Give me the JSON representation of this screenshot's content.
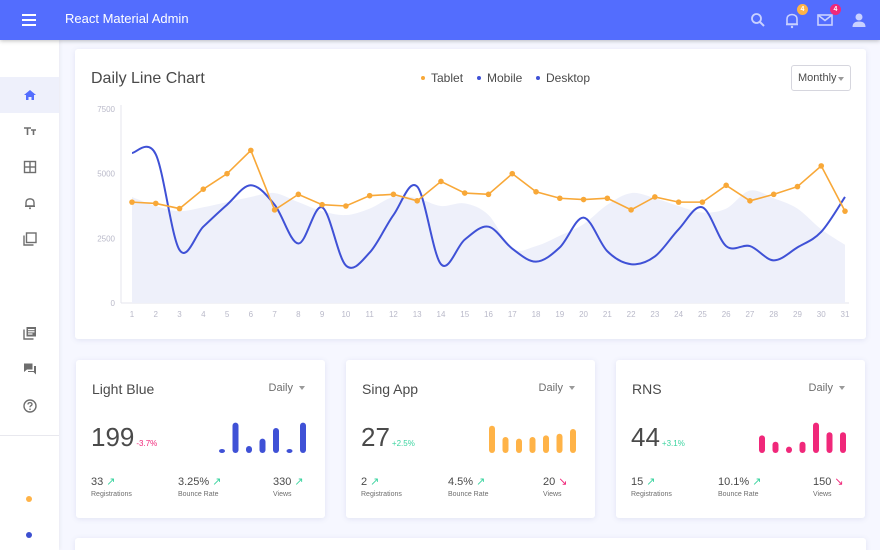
{
  "app": {
    "title": "React Material Admin"
  },
  "header": {
    "notifications_badge": "4",
    "messages_badge": "4",
    "icons": [
      "search-icon",
      "bell-icon",
      "mail-icon",
      "account-icon"
    ]
  },
  "sidebar": {
    "items": [
      {
        "icon": "home-icon",
        "active": true
      },
      {
        "icon": "typography-icon",
        "active": false
      },
      {
        "icon": "table-icon",
        "active": false
      },
      {
        "icon": "notifications-icon",
        "active": false
      },
      {
        "icon": "ui-elements-icon",
        "active": false
      },
      {
        "icon": "library-icon",
        "active": false
      },
      {
        "icon": "forum-icon",
        "active": false
      },
      {
        "icon": "help-icon",
        "active": false
      }
    ],
    "dots": [
      "#FFB347",
      "#3C4FD0"
    ]
  },
  "colors": {
    "tablet": "#F8A838",
    "mobile": "#3F51D6",
    "desktop": "#3F51D6",
    "pink": "#F0287A",
    "green": "#3CD4A0",
    "primary": "#536DFE"
  },
  "main_chart": {
    "title": "Daily Line Chart",
    "legend": [
      "Tablet",
      "Mobile",
      "Desktop"
    ],
    "period_select": "Monthly"
  },
  "chart_data": {
    "type": "line",
    "title": "Daily Line Chart",
    "x": [
      1,
      2,
      3,
      4,
      5,
      6,
      7,
      8,
      9,
      10,
      11,
      12,
      13,
      14,
      15,
      16,
      17,
      18,
      19,
      20,
      21,
      22,
      23,
      24,
      25,
      26,
      27,
      28,
      29,
      30,
      31
    ],
    "ylim": [
      0,
      7500
    ],
    "yticks": [
      0,
      2500,
      5000,
      7500
    ],
    "series": [
      {
        "name": "Tablet",
        "type": "line-dots",
        "values": [
          3900,
          3850,
          3650,
          4400,
          5000,
          5900,
          3600,
          4200,
          3800,
          3750,
          4150,
          4200,
          3950,
          4700,
          4250,
          4200,
          5000,
          4300,
          4050,
          4000,
          4050,
          3600,
          4100,
          3900,
          3900,
          4550,
          3950,
          4200,
          4500,
          5300,
          3550
        ]
      },
      {
        "name": "Mobile",
        "type": "line",
        "values": [
          5800,
          5750,
          2050,
          2950,
          3800,
          4550,
          3800,
          2300,
          3700,
          1450,
          1950,
          3400,
          4500,
          1500,
          2450,
          2950,
          2100,
          1600,
          2150,
          3300,
          2000,
          1500,
          1800,
          2850,
          3700,
          2200,
          2200,
          1650,
          2150,
          2750,
          4100
        ]
      },
      {
        "name": "Desktop",
        "type": "area",
        "values": [
          4100,
          3750,
          3550,
          3700,
          3900,
          4100,
          4250,
          3900,
          3550,
          3400,
          3650,
          4100,
          4050,
          3750,
          3850,
          3400,
          2100,
          2200,
          2600,
          3050,
          3800,
          4250,
          4050,
          3750,
          3500,
          3650,
          4350,
          4050,
          3650,
          2850,
          2250
        ]
      }
    ]
  },
  "mini_cards": [
    {
      "title": "Light Blue",
      "period": "Daily",
      "value": "199",
      "delta": "-3.7%",
      "delta_color": "#F0287A",
      "bar_color": "#3F51D6",
      "bars": [
        0.12,
        0.95,
        0.22,
        0.45,
        0.78,
        0.12,
        0.95
      ],
      "stats": [
        {
          "value": "33",
          "label": "Registrations",
          "arrow": "↗",
          "arrow_color": "#3CD4A0"
        },
        {
          "value": "3.25%",
          "label": "Bounce Rate",
          "arrow": "↗",
          "arrow_color": "#3CD4A0"
        },
        {
          "value": "330",
          "label": "Views",
          "arrow": "↗",
          "arrow_color": "#3CD4A0"
        }
      ]
    },
    {
      "title": "Sing App",
      "period": "Daily",
      "value": "27",
      "delta": "+2.5%",
      "delta_color": "#3CD4A0",
      "bar_color": "#FFB347",
      "bars": [
        0.85,
        0.5,
        0.45,
        0.5,
        0.55,
        0.6,
        0.75
      ],
      "stats": [
        {
          "value": "2",
          "label": "Registrations",
          "arrow": "↗",
          "arrow_color": "#3CD4A0"
        },
        {
          "value": "4.5%",
          "label": "Bounce Rate",
          "arrow": "↗",
          "arrow_color": "#3CD4A0"
        },
        {
          "value": "20",
          "label": "Views",
          "arrow": "↘",
          "arrow_color": "#F0287A"
        }
      ]
    },
    {
      "title": "RNS",
      "period": "Daily",
      "value": "44",
      "delta": "+3.1%",
      "delta_color": "#3CD4A0",
      "bar_color": "#F0287A",
      "bars": [
        0.55,
        0.35,
        0.2,
        0.35,
        0.95,
        0.65,
        0.65
      ],
      "stats": [
        {
          "value": "15",
          "label": "Registrations",
          "arrow": "↗",
          "arrow_color": "#3CD4A0"
        },
        {
          "value": "10.1%",
          "label": "Bounce Rate",
          "arrow": "↗",
          "arrow_color": "#3CD4A0"
        },
        {
          "value": "150",
          "label": "Views",
          "arrow": "↘",
          "arrow_color": "#F0287A"
        }
      ]
    }
  ]
}
